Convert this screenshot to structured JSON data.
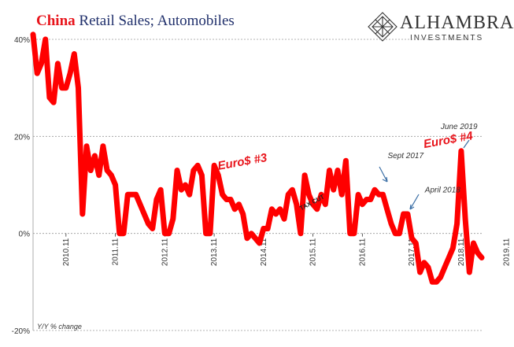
{
  "title_lead": "China",
  "title_rest": " Retail Sales; Automobiles",
  "brand": {
    "name": "ALHAMBRA",
    "sub": "INVESTMENTS"
  },
  "chart_data": {
    "type": "line",
    "ylabel": "Y/Y % change",
    "ylim": [
      -20,
      40
    ],
    "yticks": [
      {
        "v": 40,
        "label": "40%"
      },
      {
        "v": 20,
        "label": "20%"
      },
      {
        "v": 0,
        "label": "0%"
      },
      {
        "v": -20,
        "label": "-20%"
      }
    ],
    "xlim": [
      0,
      109
    ],
    "xticks": [
      {
        "i": 8,
        "label": "2010.11"
      },
      {
        "i": 20,
        "label": "2011.11"
      },
      {
        "i": 32,
        "label": "2012.11"
      },
      {
        "i": 44,
        "label": "2013.11"
      },
      {
        "i": 56,
        "label": "2014.11"
      },
      {
        "i": 68,
        "label": "2015.11"
      },
      {
        "i": 80,
        "label": "2016.11"
      },
      {
        "i": 92,
        "label": "2017.11"
      },
      {
        "i": 104,
        "label": "2018.11"
      },
      {
        "i": 115,
        "label": "2019.11"
      }
    ],
    "grid": "horizontal-dashed",
    "series": [
      {
        "color": "#ff0000",
        "values": [
          41,
          33,
          35,
          40,
          28,
          27,
          35,
          30,
          30,
          33,
          37,
          30,
          4,
          18,
          13,
          16,
          12,
          18,
          13,
          12,
          10,
          0,
          0,
          8,
          8,
          8,
          6,
          4,
          2,
          1,
          7,
          9,
          0,
          0,
          3,
          13,
          9,
          10,
          8,
          13,
          14,
          12,
          0,
          0,
          14,
          12,
          8,
          7,
          7,
          5,
          6,
          4,
          -1,
          0,
          -1,
          -2,
          1,
          1,
          5,
          4,
          5,
          3,
          8,
          9,
          6,
          0,
          12,
          8,
          6,
          5,
          8,
          6,
          13,
          9,
          13,
          8,
          15,
          0,
          0,
          8,
          6,
          7,
          7,
          9,
          8,
          8,
          5,
          2,
          0,
          0,
          4,
          4,
          -1,
          -2,
          -8,
          -6,
          -7,
          -10,
          -10,
          -9,
          -7,
          -5,
          -3,
          2,
          17,
          3,
          -8,
          -2,
          -4,
          -5
        ]
      }
    ],
    "annotations": [
      {
        "text": "Euro$ #3",
        "at": [
          51,
          14
        ],
        "color": "#e8141b"
      },
      {
        "text": "Euro$ #4",
        "at": [
          101,
          18.5
        ],
        "color": "#e8141b"
      },
      {
        "text": "June 2019",
        "at": [
          103.5,
          21.5
        ],
        "color": "#333333"
      },
      {
        "text": "Sept 2017",
        "at": [
          90.5,
          15.5
        ],
        "color": "#333333"
      },
      {
        "text": "April 2018",
        "at": [
          99.5,
          8.5
        ],
        "color": "#333333"
      },
      {
        "text": "TAX CUT",
        "at": [
          68,
          6
        ],
        "color": "#222222"
      }
    ]
  }
}
